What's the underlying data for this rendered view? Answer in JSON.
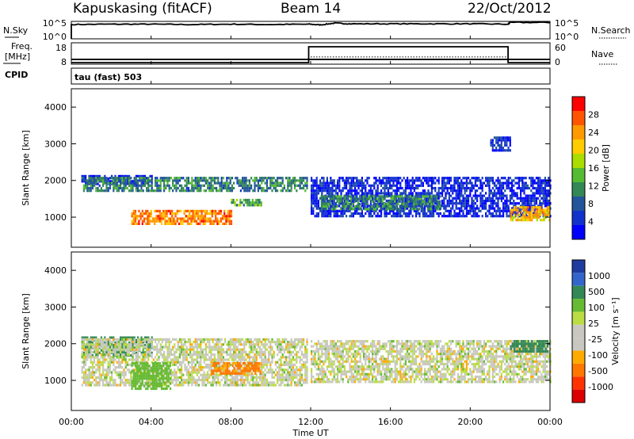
{
  "header": {
    "station": "Kapuskasing (fitACF)",
    "beam": "Beam 14",
    "date": "22/Oct/2012"
  },
  "noise_panel": {
    "left_label": "N.Sky",
    "left_ticks": [
      "10^5",
      "10^0"
    ],
    "right_ticks": [
      "10^5",
      "10^0"
    ],
    "right_label": "N.Search"
  },
  "freq_panel": {
    "left_label_1": "Freq.",
    "left_label_2": "[MHz]",
    "left_ticks": [
      "18",
      "8"
    ],
    "right_ticks": [
      "60",
      "0"
    ],
    "right_label": "Nave",
    "cpid_label": "CPID"
  },
  "cpid_panel": {
    "text": "tau (fast) 503"
  },
  "x_axis": {
    "tick_labels": [
      "00:00",
      "04:00",
      "08:00",
      "12:00",
      "16:00",
      "20:00",
      "00:00"
    ],
    "label": "Time UT"
  },
  "power_panel": {
    "ylabel": "Slant Range [km]",
    "y_ticks": [
      "1000",
      "2000",
      "3000",
      "4000"
    ],
    "colorbar_label": "Power [dB]",
    "colorbar_ticks": [
      "28",
      "24",
      "20",
      "16",
      "12",
      "8",
      "4"
    ],
    "colors": [
      "#ff0000",
      "#ff5500",
      "#ff9900",
      "#ffcc00",
      "#aadd00",
      "#55bb33",
      "#338855",
      "#225599",
      "#1133cc",
      "#0000ff"
    ]
  },
  "velocity_panel": {
    "ylabel": "Slant Range [km]",
    "y_ticks": [
      "1000",
      "2000",
      "3000",
      "4000"
    ],
    "colorbar_label": "Velocity [m s⁻¹]",
    "colorbar_ticks": [
      "1000",
      "500",
      "100",
      "25",
      "-25",
      "-100",
      "-500",
      "-1000"
    ],
    "colors": [
      "#1e3ca0",
      "#3366cc",
      "#338855",
      "#66bb33",
      "#bbdd44",
      "#c8c8c0",
      "#c8c8c0",
      "#ffaa00",
      "#ff7700",
      "#ff3300",
      "#dd0000"
    ]
  },
  "chart_data": {
    "type": "heatmap",
    "x": {
      "unit": "hours UT",
      "range": [
        0,
        24
      ]
    },
    "y": {
      "unit": "km",
      "range": [
        180,
        4500
      ]
    },
    "noise_sky_log10": [
      [
        0,
        4.1
      ],
      [
        2,
        4.2
      ],
      [
        4,
        4.2
      ],
      [
        6,
        4.1
      ],
      [
        8,
        4.2
      ],
      [
        10,
        4.1
      ],
      [
        11.9,
        4.2
      ],
      [
        12.5,
        4.0
      ],
      [
        13.2,
        4.5
      ],
      [
        14,
        4.3
      ],
      [
        16,
        4.3
      ],
      [
        18,
        4.3
      ],
      [
        20,
        4.3
      ],
      [
        21.9,
        4.2
      ],
      [
        22,
        4.7
      ],
      [
        24,
        4.7
      ]
    ],
    "frequency_mhz": [
      [
        0,
        8.6
      ],
      [
        24,
        8.6
      ]
    ],
    "nave": [
      [
        0,
        0
      ],
      [
        11.9,
        0
      ],
      [
        11.9,
        57
      ],
      [
        21.9,
        57
      ],
      [
        21.9,
        0
      ],
      [
        24,
        0
      ]
    ],
    "power_regions": [
      {
        "t": [
          0.5,
          4.0
        ],
        "range": [
          1900,
          2150
        ],
        "level": 4
      },
      {
        "t": [
          0.5,
          11.8
        ],
        "range": [
          1700,
          2100
        ],
        "level": 11
      },
      {
        "t": [
          3.0,
          8.0
        ],
        "range": [
          850,
          1200
        ],
        "level": 25
      },
      {
        "t": [
          8.0,
          9.5
        ],
        "range": [
          1300,
          1500
        ],
        "level": 14
      },
      {
        "t": [
          12.0,
          24.0
        ],
        "range": [
          1000,
          2100
        ],
        "level": 5
      },
      {
        "t": [
          12.5,
          18.5
        ],
        "range": [
          1200,
          1600
        ],
        "level": 12
      },
      {
        "t": [
          21.0,
          22.0
        ],
        "range": [
          2800,
          3200
        ],
        "level": 6
      },
      {
        "t": [
          22.0,
          24.0
        ],
        "range": [
          900,
          1300
        ],
        "level": 22
      }
    ],
    "velocity_regions": [
      {
        "t": [
          0.5,
          4.0
        ],
        "range": [
          1700,
          2200
        ],
        "value": 150
      },
      {
        "t": [
          0.5,
          11.8
        ],
        "range": [
          900,
          2150
        ],
        "value": 0
      },
      {
        "t": [
          3.0,
          5.0
        ],
        "range": [
          800,
          1500
        ],
        "value": 60
      },
      {
        "t": [
          7.0,
          9.5
        ],
        "range": [
          1200,
          1500
        ],
        "value": -120
      },
      {
        "t": [
          12.0,
          24.0
        ],
        "range": [
          950,
          2100
        ],
        "value": 0
      },
      {
        "t": [
          22.0,
          24.0
        ],
        "range": [
          1800,
          2100
        ],
        "value": 150
      }
    ]
  }
}
